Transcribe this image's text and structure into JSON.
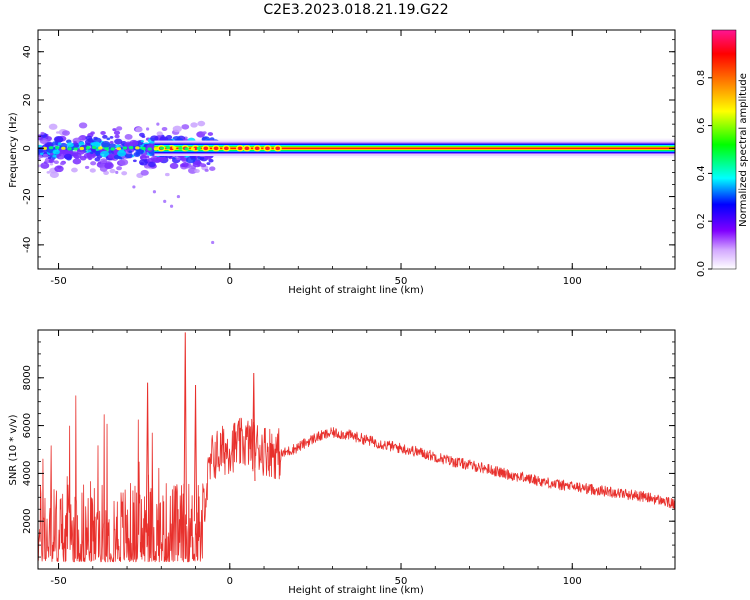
{
  "title": "C2E3.2023.018.21.19.G22",
  "chart_data": [
    {
      "type": "heatmap",
      "xlabel": "Height of straight line (km)",
      "ylabel": "Frequency (Hz)",
      "xlim": [
        -56,
        130
      ],
      "ylim": [
        -50,
        49
      ],
      "xticks": [
        -50,
        0,
        50,
        100
      ],
      "yticks": [
        -40,
        -20,
        0,
        20,
        40
      ],
      "colorbar": {
        "label": "Normalized spectral amplitude",
        "range": [
          0,
          1
        ],
        "ticks": [
          "0.0",
          "0.2",
          "0.4",
          "0.6",
          "0.8"
        ],
        "colors": [
          "#ffffff",
          "#d3a8ff",
          "#8000ff",
          "#0000ff",
          "#00ffff",
          "#00ff00",
          "#ffff00",
          "#ff8000",
          "#ff0000",
          "#ff1493"
        ]
      },
      "features": [
        {
          "name": "strong line at 0 Hz",
          "x_range": [
            -22,
            130
          ],
          "frequency": 0,
          "amplitude": 1.0
        },
        {
          "name": "scattered energy",
          "x_range": [
            -56,
            -5
          ],
          "frequency_range": [
            -24,
            10
          ],
          "amplitude": 0.3
        },
        {
          "name": "isolated point",
          "x": -5,
          "frequency": -39,
          "amplitude": 0.05
        }
      ]
    },
    {
      "type": "line",
      "xlabel": "Height of straight line (km)",
      "ylabel": "SNR (10 * v/v)",
      "xlim": [
        -56,
        130
      ],
      "ylim": [
        0,
        10000
      ],
      "xticks": [
        -50,
        0,
        50,
        100
      ],
      "yticks": [
        2000,
        4000,
        6000,
        8000
      ],
      "color": "#e8302c",
      "x": [
        -56,
        -50,
        -45,
        -40,
        -35,
        -30,
        -25,
        -20,
        -15,
        -10,
        -8,
        -5,
        0,
        5,
        10,
        15,
        20,
        25,
        30,
        35,
        40,
        45,
        50,
        55,
        60,
        65,
        70,
        75,
        80,
        85,
        90,
        95,
        100,
        105,
        110,
        115,
        120,
        125,
        130
      ],
      "values": [
        1500,
        1600,
        1700,
        1800,
        1900,
        2100,
        2800,
        3200,
        3600,
        3000,
        2500,
        4700,
        5100,
        5300,
        5000,
        4800,
        5100,
        5500,
        5700,
        5600,
        5400,
        5200,
        5050,
        4900,
        4700,
        4500,
        4350,
        4200,
        4000,
        3850,
        3700,
        3550,
        3450,
        3350,
        3250,
        3150,
        3050,
        2900,
        2700
      ],
      "spikes": [
        {
          "x": -24,
          "value": 7800
        },
        {
          "x": -13,
          "value": 9900
        },
        {
          "x": -10,
          "value": 7700
        },
        {
          "x": 7,
          "value": 8200
        }
      ]
    }
  ]
}
